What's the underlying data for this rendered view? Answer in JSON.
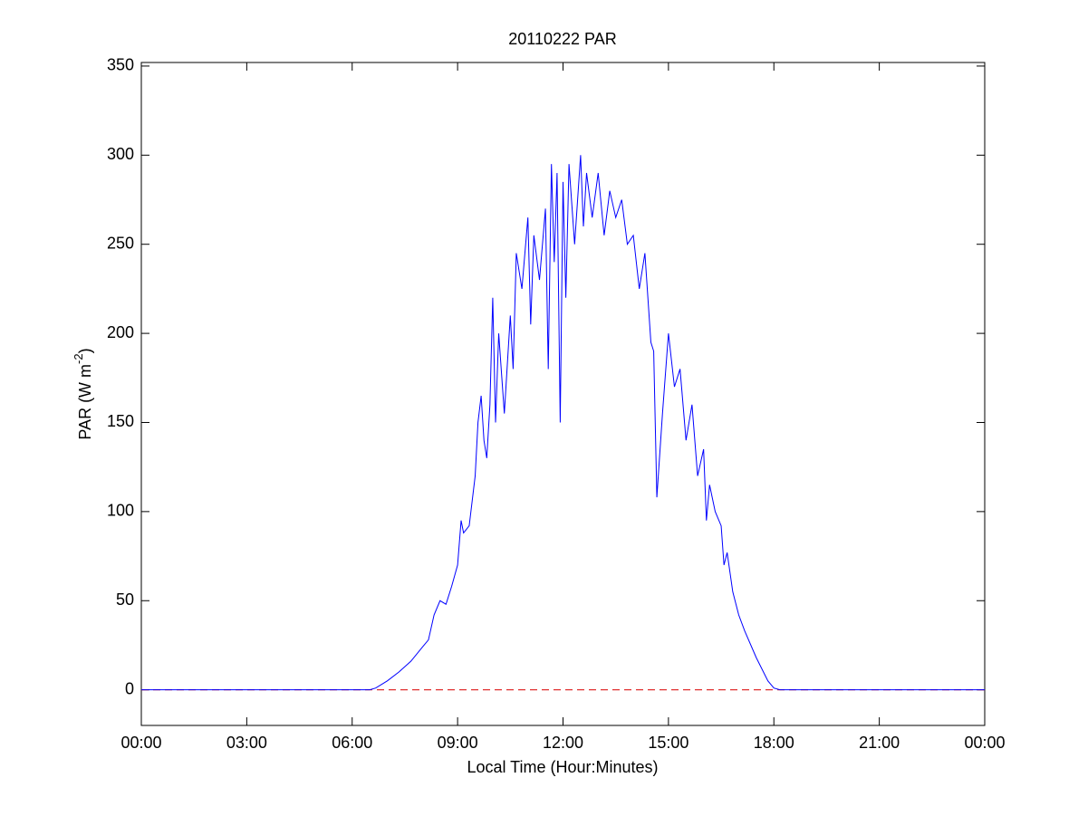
{
  "chart_data": {
    "type": "line",
    "title": "20110222 PAR",
    "xlabel": "Local Time (Hour:Minutes)",
    "ylabel": "PAR (W m",
    "ylabel_superscript": "-2",
    "ylabel_close": ")",
    "x": [
      0,
      6.5,
      6.67,
      7,
      7.33,
      7.67,
      8,
      8.17,
      8.33,
      8.5,
      8.67,
      8.83,
      9,
      9.1,
      9.17,
      9.33,
      9.5,
      9.58,
      9.67,
      9.75,
      9.83,
      9.92,
      10,
      10.08,
      10.17,
      10.33,
      10.5,
      10.58,
      10.67,
      10.83,
      11,
      11.08,
      11.17,
      11.33,
      11.5,
      11.58,
      11.67,
      11.75,
      11.83,
      11.92,
      12,
      12.08,
      12.17,
      12.33,
      12.5,
      12.58,
      12.67,
      12.83,
      13,
      13.17,
      13.33,
      13.5,
      13.67,
      13.83,
      14,
      14.17,
      14.33,
      14.5,
      14.58,
      14.67,
      14.83,
      15,
      15.17,
      15.33,
      15.5,
      15.67,
      15.83,
      16,
      16.08,
      16.17,
      16.33,
      16.5,
      16.58,
      16.67,
      16.83,
      17,
      17.17,
      17.5,
      17.83,
      18,
      18.17,
      24
    ],
    "series": [
      {
        "color": "#0000ff",
        "values": [
          0,
          0,
          1,
          5,
          10,
          16,
          24,
          28,
          42,
          50,
          48,
          58,
          70,
          95,
          88,
          92,
          120,
          150,
          165,
          140,
          130,
          160,
          220,
          150,
          200,
          155,
          210,
          180,
          245,
          225,
          265,
          205,
          255,
          230,
          270,
          180,
          295,
          240,
          290,
          150,
          285,
          220,
          295,
          250,
          300,
          260,
          290,
          265,
          290,
          255,
          280,
          265,
          275,
          250,
          255,
          225,
          245,
          195,
          190,
          108,
          155,
          200,
          170,
          180,
          140,
          160,
          120,
          135,
          95,
          115,
          100,
          92,
          70,
          77,
          55,
          42,
          33,
          18,
          5,
          1,
          0,
          0
        ]
      }
    ],
    "reference_line": {
      "value": 0,
      "color": "#e03030",
      "style": "dashed"
    },
    "xlim": [
      0,
      24
    ],
    "ylim": [
      -20,
      352
    ],
    "xticks": [
      {
        "value": 0,
        "label": "00:00"
      },
      {
        "value": 3,
        "label": "03:00"
      },
      {
        "value": 6,
        "label": "06:00"
      },
      {
        "value": 9,
        "label": "09:00"
      },
      {
        "value": 12,
        "label": "12:00"
      },
      {
        "value": 15,
        "label": "15:00"
      },
      {
        "value": 18,
        "label": "18:00"
      },
      {
        "value": 21,
        "label": "21:00"
      },
      {
        "value": 24,
        "label": "00:00"
      }
    ],
    "yticks": [
      0,
      50,
      100,
      150,
      200,
      250,
      300,
      350
    ],
    "grid": false
  }
}
